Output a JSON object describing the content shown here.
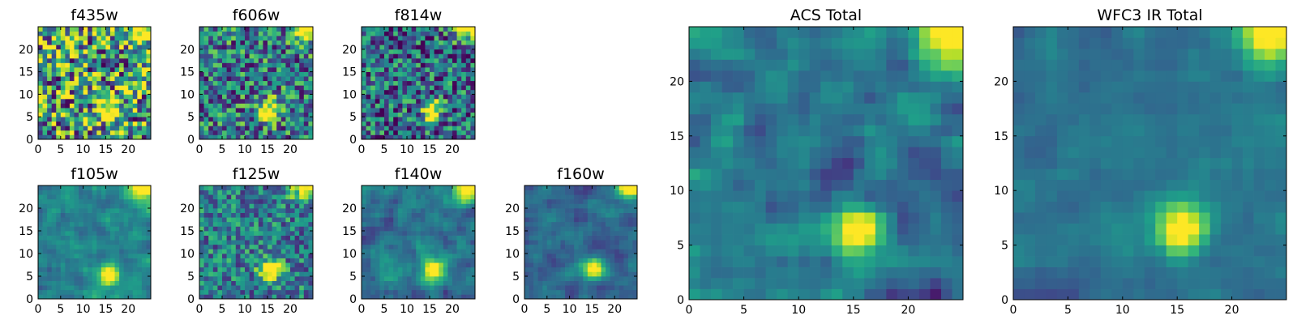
{
  "figure": {
    "colormap": "viridis",
    "colormap_stops": [
      "#440154",
      "#482878",
      "#3e4989",
      "#31688e",
      "#26828e",
      "#1f9e89",
      "#35b779",
      "#6ece58",
      "#b5de2b",
      "#fde725"
    ]
  },
  "chart_data": [
    {
      "type": "heatmap",
      "title": "f435w",
      "grid_size": [
        25,
        25
      ],
      "xlim": [
        0,
        25
      ],
      "ylim": [
        0,
        25
      ],
      "xticks": [
        0,
        5,
        10,
        15,
        20
      ],
      "yticks": [
        0,
        5,
        10,
        15,
        20
      ],
      "source": {
        "x": 15,
        "y": 6
      },
      "corner_source": true,
      "noise": 0.55,
      "base": 0.55,
      "seed": 11
    },
    {
      "type": "heatmap",
      "title": "f606w",
      "grid_size": [
        25,
        25
      ],
      "xlim": [
        0,
        25
      ],
      "ylim": [
        0,
        25
      ],
      "xticks": [
        0,
        5,
        10,
        15,
        20
      ],
      "yticks": [
        0,
        5,
        10,
        15,
        20
      ],
      "source": {
        "x": 15,
        "y": 6
      },
      "corner_source": true,
      "noise": 0.4,
      "base": 0.42,
      "seed": 23
    },
    {
      "type": "heatmap",
      "title": "f814w",
      "grid_size": [
        25,
        25
      ],
      "xlim": [
        0,
        25
      ],
      "ylim": [
        0,
        25
      ],
      "xticks": [
        0,
        5,
        10,
        15,
        20
      ],
      "yticks": [
        0,
        5,
        10,
        15,
        20
      ],
      "source": {
        "x": 15,
        "y": 6
      },
      "corner_source": true,
      "noise": 0.4,
      "base": 0.35,
      "seed": 37
    },
    {
      "type": "heatmap",
      "title": "f105w",
      "grid_size": [
        25,
        25
      ],
      "xlim": [
        0,
        25
      ],
      "ylim": [
        0,
        25
      ],
      "xticks": [
        0,
        5,
        10,
        15,
        20
      ],
      "yticks": [
        0,
        5,
        10,
        15,
        20
      ],
      "source": {
        "x": 15,
        "y": 5
      },
      "corner_source": true,
      "noise": 0.22,
      "base": 0.45,
      "seed": 41
    },
    {
      "type": "heatmap",
      "title": "f125w",
      "grid_size": [
        25,
        25
      ],
      "xlim": [
        0,
        25
      ],
      "ylim": [
        0,
        25
      ],
      "xticks": [
        0,
        5,
        10,
        15,
        20
      ],
      "yticks": [
        0,
        5,
        10,
        15,
        20
      ],
      "source": {
        "x": 15,
        "y": 6
      },
      "corner_source": true,
      "noise": 0.3,
      "base": 0.42,
      "seed": 53
    },
    {
      "type": "heatmap",
      "title": "f140w",
      "grid_size": [
        25,
        25
      ],
      "xlim": [
        0,
        25
      ],
      "ylim": [
        0,
        25
      ],
      "xticks": [
        0,
        5,
        10,
        15,
        20
      ],
      "yticks": [
        0,
        5,
        10,
        15,
        20
      ],
      "source": {
        "x": 15,
        "y": 6
      },
      "corner_source": true,
      "noise": 0.25,
      "base": 0.4,
      "seed": 67
    },
    {
      "type": "heatmap",
      "title": "f160w",
      "grid_size": [
        25,
        25
      ],
      "xlim": [
        0,
        25
      ],
      "ylim": [
        0,
        25
      ],
      "xticks": [
        0,
        5,
        10,
        15,
        20
      ],
      "yticks": [
        0,
        5,
        10,
        15,
        20
      ],
      "source": {
        "x": 15,
        "y": 6
      },
      "corner_source": true,
      "noise": 0.2,
      "base": 0.33,
      "seed": 71
    },
    {
      "type": "heatmap",
      "title": "ACS Total",
      "grid_size": [
        25,
        25
      ],
      "xlim": [
        0,
        25
      ],
      "ylim": [
        0,
        25
      ],
      "xticks": [
        0,
        5,
        10,
        15,
        20
      ],
      "yticks": [
        0,
        5,
        10,
        15,
        20
      ],
      "source": {
        "x": 15,
        "y": 6
      },
      "corner_source": true,
      "noise": 0.25,
      "base": 0.4,
      "seed": 83
    },
    {
      "type": "heatmap",
      "title": "WFC3 IR Total",
      "grid_size": [
        25,
        25
      ],
      "xlim": [
        0,
        25
      ],
      "ylim": [
        0,
        25
      ],
      "xticks": [
        0,
        5,
        10,
        15,
        20
      ],
      "yticks": [
        0,
        5,
        10,
        15,
        20
      ],
      "source": {
        "x": 15,
        "y": 6
      },
      "corner_source": true,
      "noise": 0.12,
      "base": 0.38,
      "seed": 97
    }
  ]
}
